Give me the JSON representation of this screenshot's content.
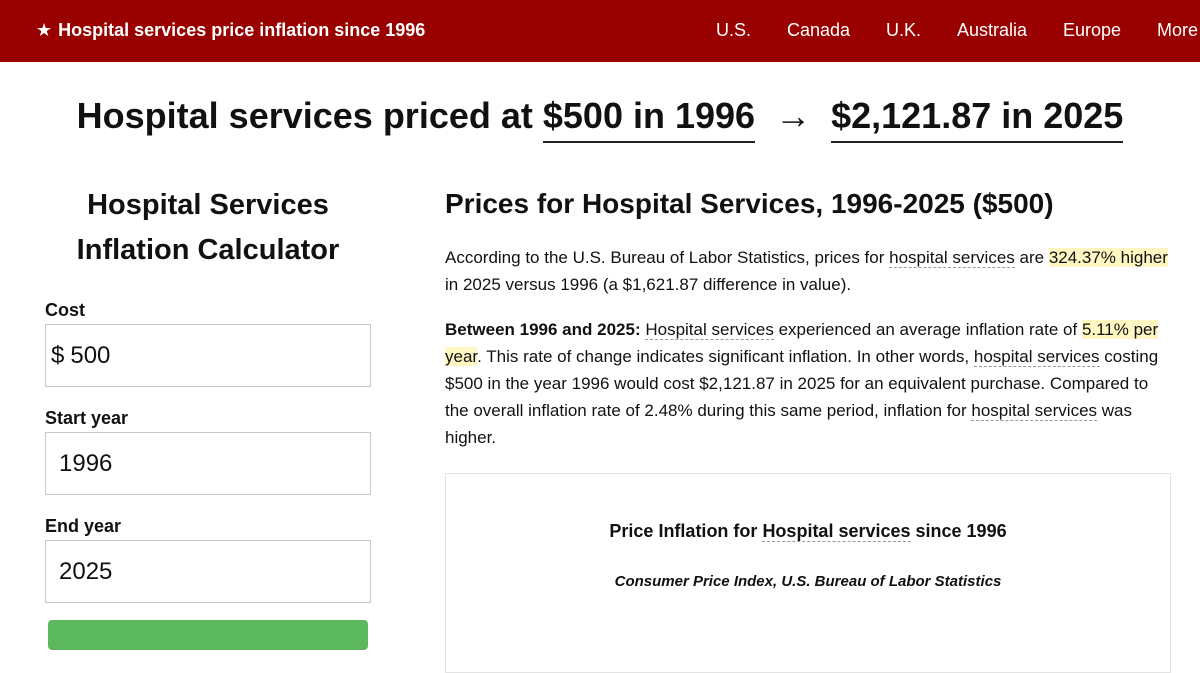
{
  "header": {
    "brand": "Hospital services price inflation since 1996",
    "brand_icon": "star-icon",
    "nav": [
      "U.S.",
      "Canada",
      "U.K.",
      "Australia",
      "Europe",
      "More"
    ],
    "bg_color": "#990000"
  },
  "headline": {
    "prefix": "Hospital services priced at",
    "from": "$500 in 1996",
    "arrow": "→",
    "to": "$2,121.87 in 2025"
  },
  "calculator": {
    "title_line1": "Hospital Services",
    "title_line2": "Inflation Calculator",
    "cost_label": "Cost",
    "currency": "$",
    "cost_value": "500",
    "start_label": "Start year",
    "start_value": "1996",
    "end_label": "End year",
    "end_value": "2025",
    "button_color": "#5cb85c"
  },
  "article": {
    "heading": "Prices for Hospital Services, 1996-2025 ($500)",
    "p1": {
      "a": "According to the U.S. Bureau of Labor Statistics, prices for ",
      "link": "hospital services",
      "b": " are ",
      "highlight": "324.37% higher",
      "c": " in 2025 versus 1996 (a $1,621.87 difference in value)."
    },
    "p2": {
      "bold": "Between 1996 and 2025:",
      "link1": "Hospital services",
      "a": " experienced an average inflation rate of ",
      "highlight": "5.11% per year",
      "b": ". This rate of change indicates significant inflation. In other words, ",
      "link2": "hospital services",
      "c": " costing $500 in the year 1996 would cost $2,121.87 in 2025 for an equivalent purchase. Compared to the overall inflation rate of 2.48% during this same period, inflation for ",
      "link3": "hospital services",
      "d": " was higher."
    }
  },
  "chart": {
    "title_a": "Price Inflation for ",
    "title_link": "Hospital services",
    "title_b": " since 1996",
    "subtitle": "Consumer Price Index, U.S. Bureau of Labor Statistics"
  }
}
